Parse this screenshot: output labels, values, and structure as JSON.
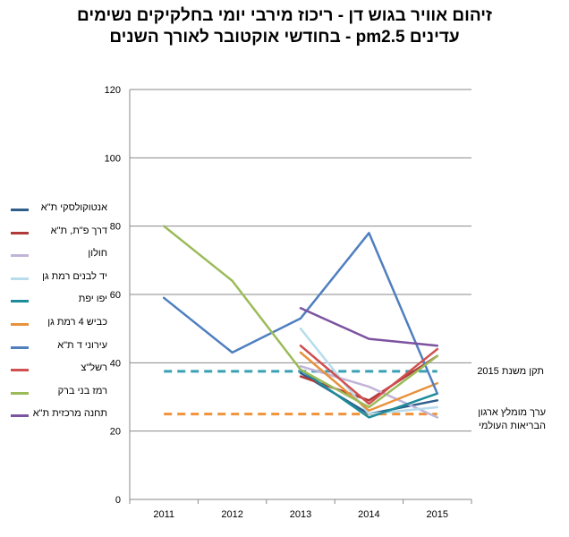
{
  "chart_data": {
    "type": "line",
    "title": [
      "זיהום אוויר בגוש דן - ריכוז מירבי יומי בחלקיקים נשימים",
      "עדינים pm2.5 - בחודשי אוקטובר לאורך השנים"
    ],
    "categories": [
      "2011",
      "2012",
      "2013",
      "2014",
      "2015"
    ],
    "ylim": [
      0,
      120
    ],
    "yticks": [
      0,
      20,
      40,
      60,
      80,
      100,
      120
    ],
    "grid": "horizontal",
    "legend": "left",
    "series": [
      {
        "name": "אנטוקולסקי  ת\"א",
        "color": "#2e5f8a",
        "values": [
          null,
          null,
          37,
          25,
          29
        ]
      },
      {
        "name": "דרך פ\"ת, ת\"א",
        "color": "#b03a3a",
        "values": [
          null,
          null,
          36,
          29,
          42
        ]
      },
      {
        "name": "חולון",
        "color": "#c0b4d8",
        "values": [
          null,
          null,
          39,
          33,
          24
        ]
      },
      {
        "name": "יד לבנים רמת גן",
        "color": "#b7dcec",
        "values": [
          null,
          null,
          50,
          25,
          27
        ]
      },
      {
        "name": "יפו יפת",
        "color": "#1e8c9a",
        "values": [
          null,
          null,
          38,
          24,
          31
        ]
      },
      {
        "name": "כביש 4 רמת גן",
        "color": "#e8923c",
        "values": [
          null,
          null,
          43,
          26,
          34
        ]
      },
      {
        "name": "עירוני ד ת\"א",
        "color": "#4f7fbf",
        "values": [
          59,
          43,
          53,
          78,
          31
        ]
      },
      {
        "name": "רשל\"צ",
        "color": "#d05050",
        "values": [
          null,
          null,
          45,
          28,
          44
        ]
      },
      {
        "name": "רמז בני ברק",
        "color": "#9bbb59",
        "values": [
          80,
          64,
          38,
          27,
          42
        ]
      },
      {
        "name": "תחנה מרכזית ת\"א",
        "color": "#7c53a0",
        "values": [
          null,
          null,
          56,
          47,
          45
        ]
      }
    ],
    "reference_lines": [
      {
        "name": "תקן משנת 2015",
        "value": 37.5,
        "color": "#3aa0b4"
      },
      {
        "name": "ערך מומלץ ארגון הבריאות העולמי",
        "lines": [
          "ערך מומלץ ארגון",
          "הבריאות העולמי"
        ],
        "value": 25,
        "color": "#f0923a"
      }
    ]
  }
}
